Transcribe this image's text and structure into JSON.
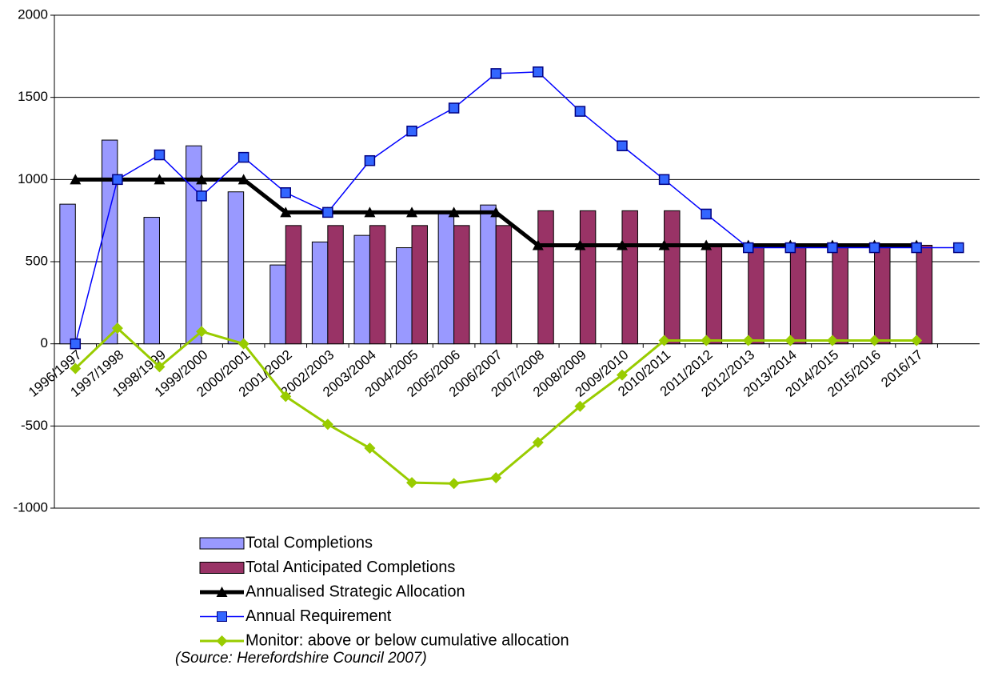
{
  "chart_data": {
    "type": "bar",
    "categories": [
      "1996/1997",
      "1997/1998",
      "1998/1999",
      "1999/2000",
      "2000/2001",
      "2001/2002",
      "2002/2003",
      "2003/2004",
      "2004/2005",
      "2005/2006",
      "2006/2007",
      "2007/2008",
      "2008/2009",
      "2009/2010",
      "2010/2011",
      "2011/2012",
      "2012/2013",
      "2013/2014",
      "2014/2015",
      "2015/2016",
      "2016/17",
      null
    ],
    "series": [
      {
        "name": "Total Completions",
        "type": "bar",
        "color": "#9999ff",
        "values": [
          850,
          1240,
          770,
          1205,
          925,
          480,
          620,
          660,
          585,
          800,
          845,
          null,
          null,
          null,
          null,
          null,
          null,
          null,
          null,
          null,
          null,
          null
        ]
      },
      {
        "name": "Total Anticipated Completions",
        "type": "bar",
        "color": "#993366",
        "values": [
          null,
          null,
          null,
          null,
          null,
          720,
          720,
          720,
          720,
          720,
          720,
          810,
          810,
          810,
          810,
          600,
          600,
          600,
          600,
          600,
          600,
          null
        ]
      },
      {
        "name": "Annualised Strategic Allocation",
        "type": "line",
        "color": "#000000",
        "marker": "triangle",
        "values": [
          1000,
          1000,
          1000,
          1000,
          1000,
          800,
          800,
          800,
          800,
          800,
          800,
          600,
          600,
          600,
          600,
          600,
          600,
          600,
          600,
          600,
          600,
          null
        ]
      },
      {
        "name": "Annual Requirement",
        "type": "line",
        "color": "#0000ff",
        "marker": "square",
        "values": [
          0,
          1000,
          1150,
          900,
          1135,
          920,
          800,
          1115,
          1295,
          1435,
          1645,
          1655,
          1415,
          1205,
          1000,
          790,
          585,
          585,
          585,
          585,
          585,
          585
        ]
      },
      {
        "name": "Monitor: above or below cumulative allocation",
        "type": "line",
        "color": "#99cc00",
        "marker": "diamond",
        "values": [
          -150,
          95,
          -140,
          75,
          0,
          -320,
          -490,
          -635,
          -845,
          -850,
          -815,
          -600,
          -380,
          -190,
          20,
          20,
          20,
          20,
          20,
          20,
          20,
          null
        ]
      }
    ],
    "ylim": [
      -1000,
      2000
    ],
    "yticks": [
      -1000,
      -500,
      0,
      500,
      1000,
      1500,
      2000
    ],
    "grid": true,
    "source": "(Source: Herefordshire Council 2007)"
  }
}
